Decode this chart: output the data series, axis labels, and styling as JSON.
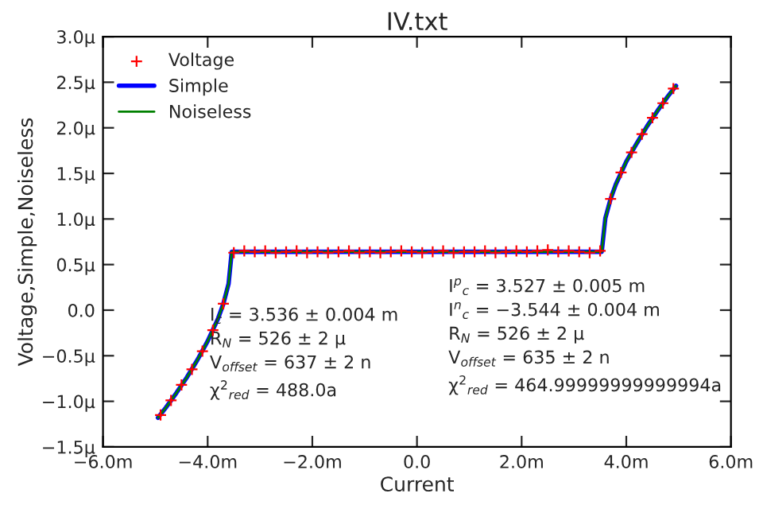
{
  "chart_data": {
    "type": "line",
    "title": "IV.txt",
    "xlabel": "Current",
    "ylabel": "Voltage,Simple,Noiseless",
    "xlim": [
      -6,
      6
    ],
    "xticks": [
      {
        "value": -6,
        "label": "−6.0m"
      },
      {
        "value": -4,
        "label": "−4.0m"
      },
      {
        "value": -2,
        "label": "−2.0m"
      },
      {
        "value": 0,
        "label": "0.0"
      },
      {
        "value": 2,
        "label": "2.0m"
      },
      {
        "value": 4,
        "label": "4.0m"
      },
      {
        "value": 6,
        "label": "6.0m"
      }
    ],
    "ylim": [
      -1.5,
      3.0
    ],
    "yticks": [
      {
        "value": -1.5,
        "label": "−1.5µ"
      },
      {
        "value": -1.0,
        "label": "−1.0µ"
      },
      {
        "value": -0.5,
        "label": "−0.5µ"
      },
      {
        "value": 0,
        "label": "0.0"
      },
      {
        "value": 0.5,
        "label": "0.5µ"
      },
      {
        "value": 1.0,
        "label": "1.0µ"
      },
      {
        "value": 1.5,
        "label": "1.5µ"
      },
      {
        "value": 2.0,
        "label": "2.0µ"
      },
      {
        "value": 2.5,
        "label": "2.5µ"
      },
      {
        "value": 3.0,
        "label": "3.0µ"
      }
    ],
    "legend": "top left",
    "series": [
      {
        "name": "Voltage",
        "type": "scatter",
        "marker": "cross",
        "color": "#ff0000",
        "x": [
          -4.9,
          -4.7,
          -4.5,
          -4.3,
          -4.1,
          -3.9,
          -3.7,
          -3.5,
          -3.3,
          -3.1,
          -2.9,
          -2.7,
          -2.5,
          -2.3,
          -2.1,
          -1.9,
          -1.7,
          -1.5,
          -1.3,
          -1.1,
          -0.9,
          -0.7,
          -0.5,
          -0.3,
          -0.1,
          0.1,
          0.3,
          0.5,
          0.7,
          0.9,
          1.1,
          1.3,
          1.5,
          1.7,
          1.9,
          2.1,
          2.3,
          2.5,
          2.7,
          2.9,
          3.1,
          3.3,
          3.5,
          3.7,
          3.9,
          4.1,
          4.3,
          4.5,
          4.7,
          4.9
        ],
        "values": [
          -1.15,
          -0.99,
          -0.82,
          -0.65,
          -0.45,
          -0.22,
          0.07,
          0.63,
          0.65,
          0.64,
          0.65,
          0.63,
          0.64,
          0.65,
          0.63,
          0.64,
          0.63,
          0.64,
          0.65,
          0.63,
          0.64,
          0.63,
          0.64,
          0.65,
          0.64,
          0.63,
          0.64,
          0.65,
          0.63,
          0.64,
          0.64,
          0.65,
          0.63,
          0.64,
          0.65,
          0.64,
          0.65,
          0.66,
          0.64,
          0.65,
          0.64,
          0.63,
          0.65,
          1.22,
          1.51,
          1.73,
          1.93,
          2.11,
          2.27,
          2.43
        ]
      },
      {
        "name": "Simple",
        "color": "#0000ff",
        "x": [
          -4.95,
          -4.8,
          -4.6,
          -4.4,
          -4.2,
          -4.0,
          -3.8,
          -3.7,
          -3.6,
          -3.54,
          3.53,
          3.6,
          3.7,
          3.8,
          4.0,
          4.2,
          4.4,
          4.6,
          4.8,
          4.95
        ],
        "values": [
          -1.18,
          -1.07,
          -0.91,
          -0.74,
          -0.55,
          -0.34,
          -0.09,
          0.07,
          0.29,
          0.64,
          0.64,
          1.01,
          1.22,
          1.38,
          1.63,
          1.83,
          2.02,
          2.19,
          2.35,
          2.46
        ]
      },
      {
        "name": "Noiseless",
        "color": "#008000",
        "x": [
          -4.95,
          -4.8,
          -4.6,
          -4.4,
          -4.2,
          -4.0,
          -3.8,
          -3.7,
          -3.6,
          -3.54,
          3.53,
          3.6,
          3.7,
          3.8,
          4.0,
          4.2,
          4.4,
          4.6,
          4.8,
          4.95
        ],
        "values": [
          -1.18,
          -1.07,
          -0.91,
          -0.74,
          -0.55,
          -0.34,
          -0.09,
          0.07,
          0.29,
          0.64,
          0.64,
          1.01,
          1.22,
          1.38,
          1.63,
          1.83,
          2.02,
          2.19,
          2.35,
          2.46
        ]
      }
    ],
    "annotations": [
      "I$_{c}$ = 3.536 ± 0.004 m\nR$_{N}$ = 526 ± 2 µ\nV$_{offset}$ = 637 ± 2 n\nχ$^{2}$$_{red}$ = 488.0a",
      "I$^{p}$$_{c}$ = 3.527 ± 0.005 m\nI$^{n}$$_{c}$ = −3.544 ± 0.004 m\nR$_{N}$ = 526 ± 2 µ\nV$_{offset}$ = 635 ± 2 n\nχ$^{2}$$_{red}$ = 464.99999999999994a"
    ]
  }
}
